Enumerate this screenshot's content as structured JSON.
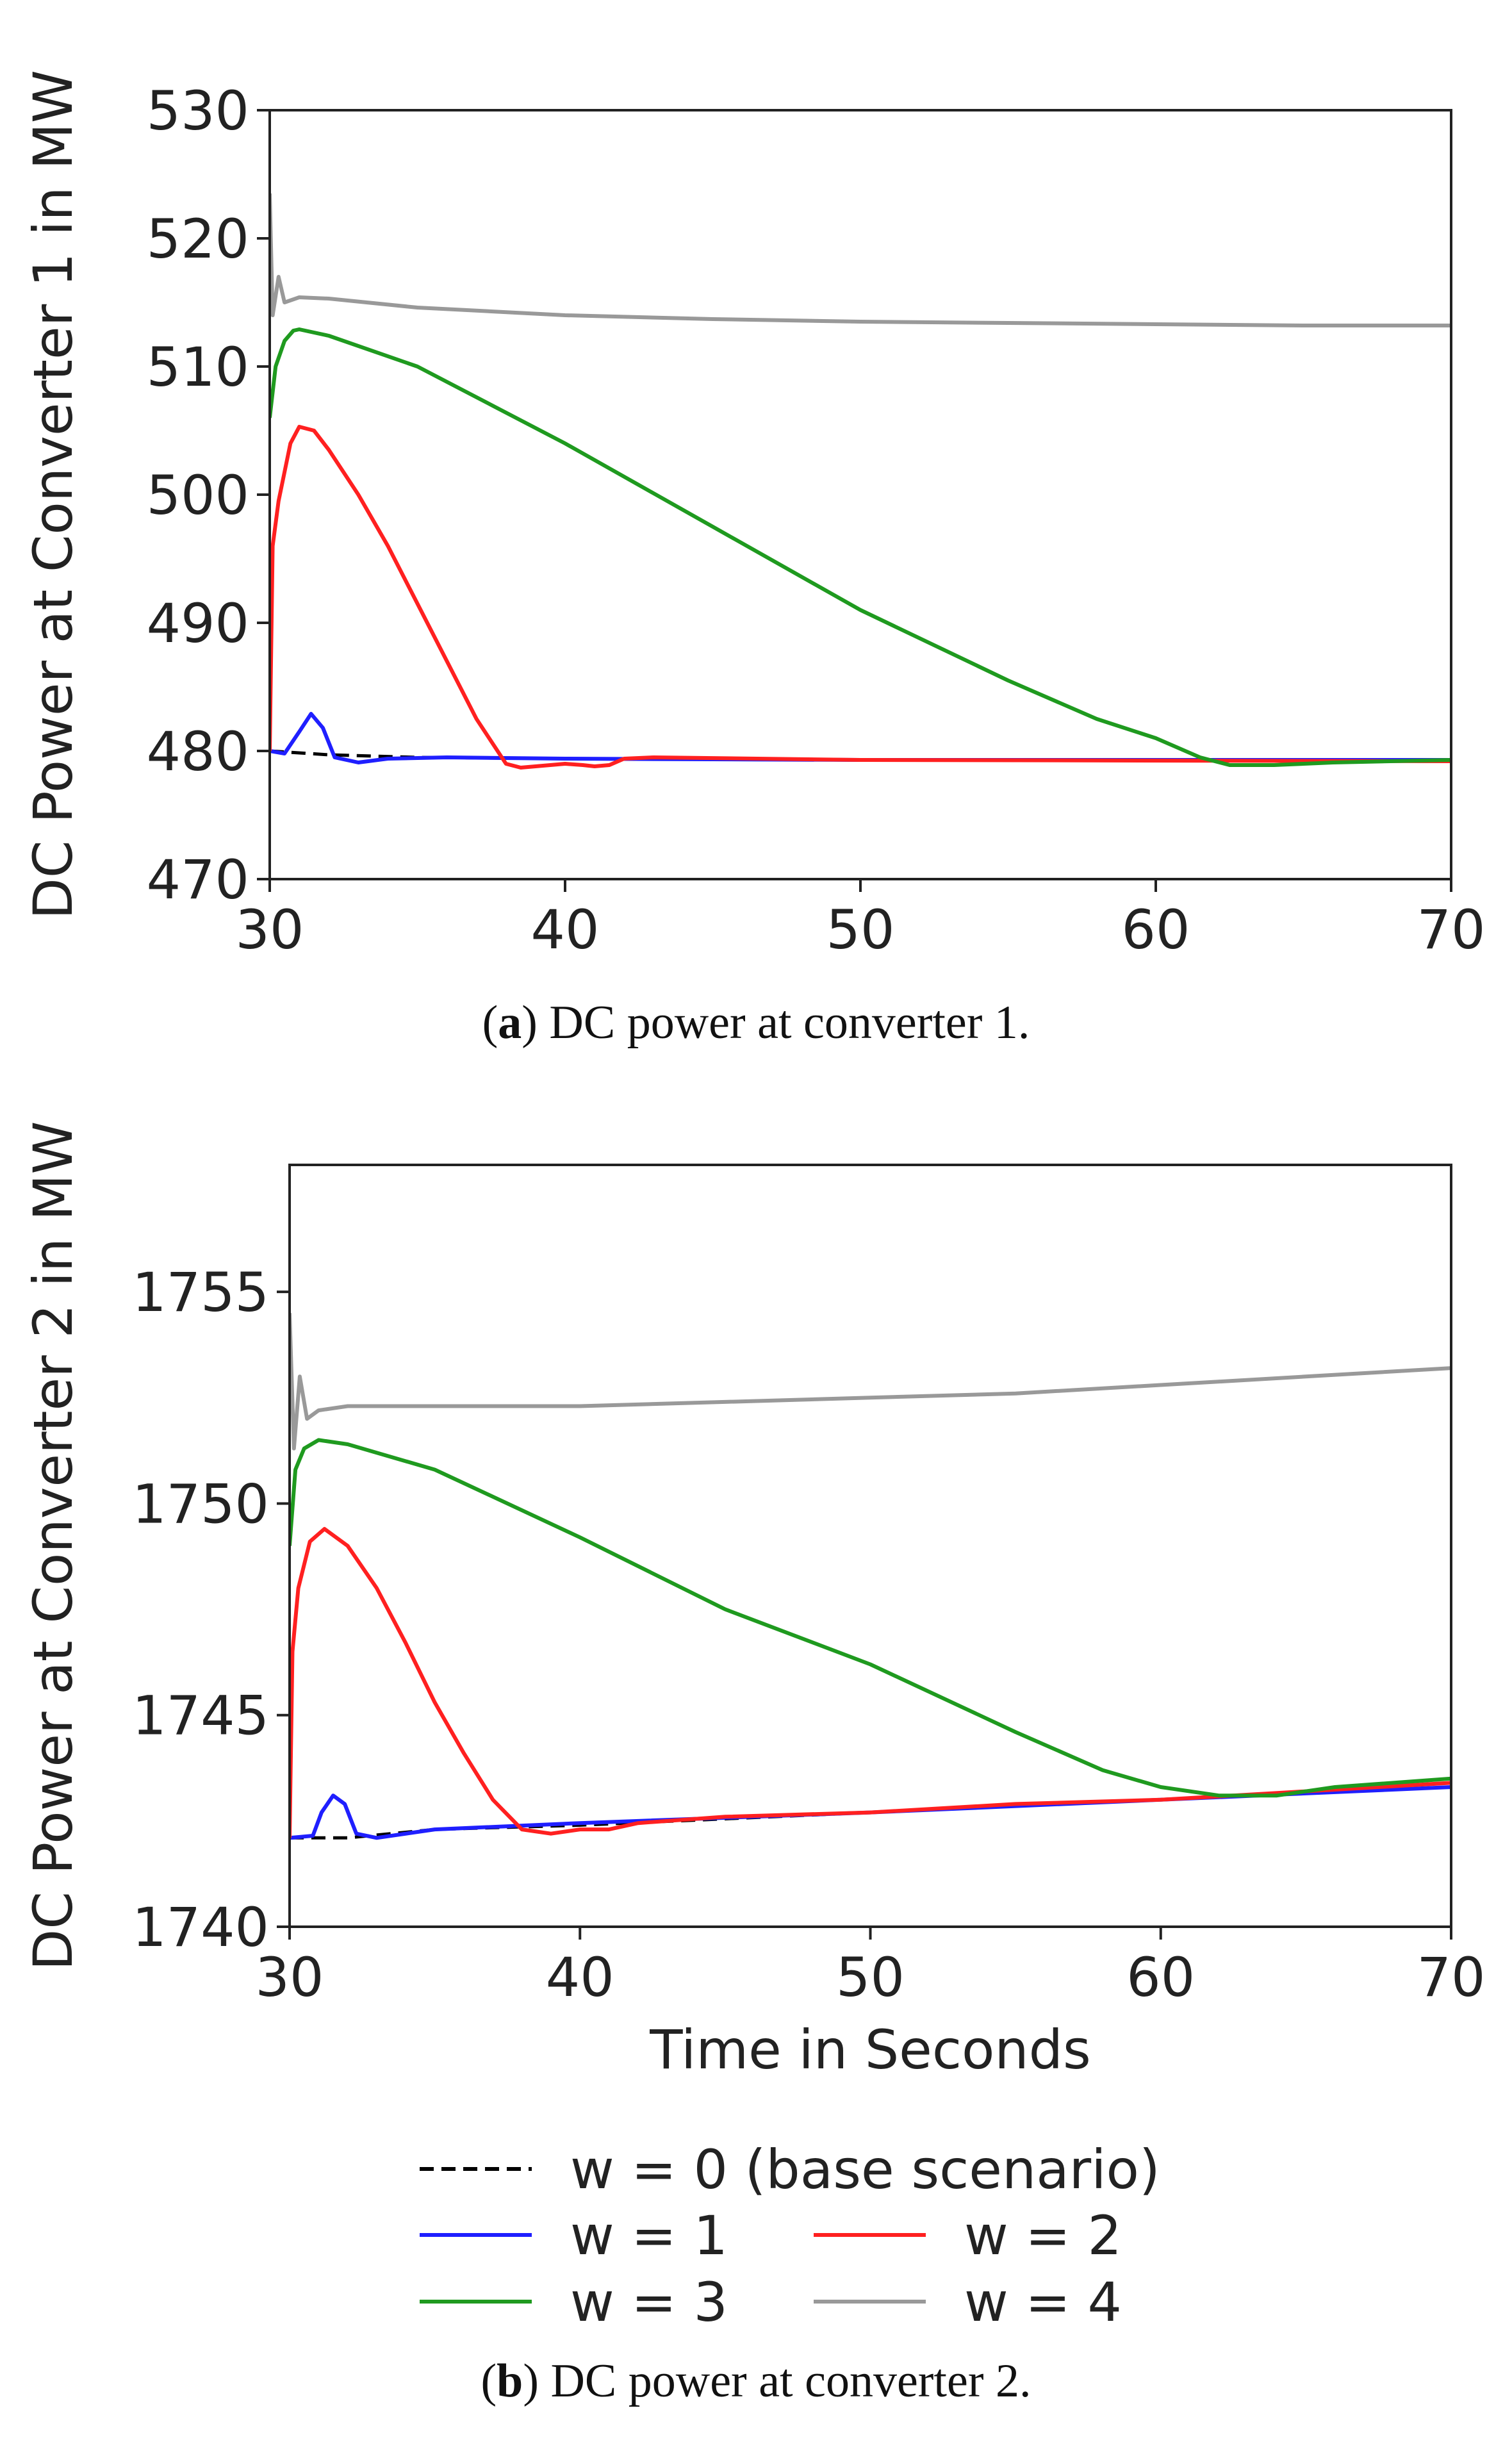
{
  "chart_data": [
    {
      "id": "a",
      "type": "line",
      "ylabel": "DC Power at Converter 1 in MW",
      "xlabel": "",
      "xlim": [
        30,
        70
      ],
      "ylim": [
        470,
        530
      ],
      "xticks": [
        30,
        40,
        50,
        60,
        70
      ],
      "yticks": [
        470,
        480,
        490,
        500,
        510,
        520,
        530
      ],
      "caption_label": "a",
      "caption_text": "DC power at converter 1.",
      "series": [
        {
          "name": "w = 0 (base scenario)",
          "color": "#000000",
          "dashed": true,
          "points": [
            [
              30,
              480
            ],
            [
              32,
              479.7
            ],
            [
              35,
              479.5
            ],
            [
              40,
              479.4
            ],
            [
              50,
              479.3
            ],
            [
              60,
              479.3
            ],
            [
              70,
              479.3
            ]
          ]
        },
        {
          "name": "w = 1",
          "color": "#1f1fff",
          "dashed": false,
          "points": [
            [
              30,
              480
            ],
            [
              30.5,
              479.8
            ],
            [
              31,
              481.5
            ],
            [
              31.4,
              482.9
            ],
            [
              31.8,
              481.8
            ],
            [
              32.2,
              479.5
            ],
            [
              33,
              479.1
            ],
            [
              34,
              479.4
            ],
            [
              36,
              479.5
            ],
            [
              40,
              479.4
            ],
            [
              50,
              479.3
            ],
            [
              70,
              479.3
            ]
          ]
        },
        {
          "name": "w = 2",
          "color": "#ff2020",
          "dashed": false,
          "points": [
            [
              30,
              480
            ],
            [
              30.1,
              496
            ],
            [
              30.3,
              499.5
            ],
            [
              30.7,
              504
            ],
            [
              31,
              505.3
            ],
            [
              31.5,
              505
            ],
            [
              32,
              503.5
            ],
            [
              33,
              500
            ],
            [
              34,
              496
            ],
            [
              35,
              491.5
            ],
            [
              36,
              487
            ],
            [
              37,
              482.5
            ],
            [
              38,
              479
            ],
            [
              38.5,
              478.7
            ],
            [
              39,
              478.8
            ],
            [
              40,
              479
            ],
            [
              40.6,
              478.9
            ],
            [
              41,
              478.8
            ],
            [
              41.5,
              478.9
            ],
            [
              42,
              479.4
            ],
            [
              43,
              479.5
            ],
            [
              50,
              479.3
            ],
            [
              70,
              479.2
            ]
          ]
        },
        {
          "name": "w = 3",
          "color": "#1f9a1f",
          "dashed": false,
          "points": [
            [
              30,
              506
            ],
            [
              30.2,
              510
            ],
            [
              30.5,
              512
            ],
            [
              30.8,
              512.8
            ],
            [
              31,
              512.9
            ],
            [
              32,
              512.4
            ],
            [
              35,
              510
            ],
            [
              40,
              504
            ],
            [
              45,
              497.5
            ],
            [
              50,
              491
            ],
            [
              55,
              485.5
            ],
            [
              58,
              482.5
            ],
            [
              60,
              481
            ],
            [
              61.5,
              479.5
            ],
            [
              62.5,
              478.9
            ],
            [
              64,
              478.9
            ],
            [
              66,
              479.1
            ],
            [
              70,
              479.3
            ]
          ]
        },
        {
          "name": "w = 4",
          "color": "#999999",
          "dashed": false,
          "points": [
            [
              30,
              523.5
            ],
            [
              30.1,
              514
            ],
            [
              30.3,
              517
            ],
            [
              30.5,
              515
            ],
            [
              31,
              515.4
            ],
            [
              32,
              515.3
            ],
            [
              35,
              514.6
            ],
            [
              40,
              514
            ],
            [
              45,
              513.7
            ],
            [
              50,
              513.5
            ],
            [
              55,
              513.4
            ],
            [
              60,
              513.3
            ],
            [
              65,
              513.2
            ],
            [
              70,
              513.2
            ]
          ]
        }
      ]
    },
    {
      "id": "b",
      "type": "line",
      "ylabel": "DC Power at Converter 2 in MW",
      "xlabel": "Time in Seconds",
      "xlim": [
        30,
        70
      ],
      "ylim": [
        1740,
        1758
      ],
      "xticks": [
        30,
        40,
        50,
        60,
        70
      ],
      "yticks": [
        1740,
        1745,
        1750,
        1755
      ],
      "caption_label": "b",
      "caption_text": "DC power at converter 2.",
      "series": [
        {
          "name": "w = 0 (base scenario)",
          "color": "#000000",
          "dashed": true,
          "points": [
            [
              30,
              1742.1
            ],
            [
              32,
              1742.1
            ],
            [
              35,
              1742.3
            ],
            [
              40,
              1742.4
            ],
            [
              50,
              1742.7
            ],
            [
              60,
              1743
            ],
            [
              70,
              1743.3
            ]
          ]
        },
        {
          "name": "w = 1",
          "color": "#1f1fff",
          "dashed": false,
          "points": [
            [
              30,
              1742.1
            ],
            [
              30.8,
              1742.15
            ],
            [
              31.1,
              1742.7
            ],
            [
              31.5,
              1743.1
            ],
            [
              31.9,
              1742.9
            ],
            [
              32.3,
              1742.2
            ],
            [
              33,
              1742.1
            ],
            [
              35,
              1742.3
            ],
            [
              40,
              1742.45
            ],
            [
              50,
              1742.7
            ],
            [
              60,
              1743
            ],
            [
              70,
              1743.3
            ]
          ]
        },
        {
          "name": "w = 2",
          "color": "#ff2020",
          "dashed": false,
          "points": [
            [
              30,
              1742.1
            ],
            [
              30.1,
              1746.5
            ],
            [
              30.3,
              1748
            ],
            [
              30.7,
              1749.1
            ],
            [
              31.2,
              1749.4
            ],
            [
              32,
              1749
            ],
            [
              33,
              1748
            ],
            [
              34,
              1746.7
            ],
            [
              35,
              1745.3
            ],
            [
              36,
              1744.1
            ],
            [
              37,
              1743
            ],
            [
              38,
              1742.3
            ],
            [
              39,
              1742.2
            ],
            [
              40,
              1742.3
            ],
            [
              41,
              1742.3
            ],
            [
              42,
              1742.45
            ],
            [
              45,
              1742.6
            ],
            [
              50,
              1742.7
            ],
            [
              55,
              1742.9
            ],
            [
              60,
              1743
            ],
            [
              65,
              1743.2
            ],
            [
              70,
              1743.4
            ]
          ]
        },
        {
          "name": "w = 3",
          "color": "#1f9a1f",
          "dashed": false,
          "points": [
            [
              30,
              1749
            ],
            [
              30.2,
              1750.8
            ],
            [
              30.5,
              1751.3
            ],
            [
              31,
              1751.5
            ],
            [
              32,
              1751.4
            ],
            [
              35,
              1750.8
            ],
            [
              40,
              1749.2
            ],
            [
              45,
              1747.5
            ],
            [
              50,
              1746.2
            ],
            [
              55,
              1744.6
            ],
            [
              58,
              1743.7
            ],
            [
              60,
              1743.3
            ],
            [
              62,
              1743.1
            ],
            [
              64,
              1743.1
            ],
            [
              66,
              1743.3
            ],
            [
              70,
              1743.5
            ]
          ]
        },
        {
          "name": "w = 4",
          "color": "#999999",
          "dashed": false,
          "points": [
            [
              30,
              1754.5
            ],
            [
              30.15,
              1751.3
            ],
            [
              30.35,
              1753
            ],
            [
              30.6,
              1752
            ],
            [
              31,
              1752.2
            ],
            [
              32,
              1752.3
            ],
            [
              35,
              1752.3
            ],
            [
              40,
              1752.3
            ],
            [
              45,
              1752.4
            ],
            [
              50,
              1752.5
            ],
            [
              55,
              1752.6
            ],
            [
              60,
              1752.8
            ],
            [
              65,
              1753
            ],
            [
              70,
              1753.2
            ]
          ]
        }
      ]
    }
  ],
  "legend": {
    "entries": [
      {
        "name": "w = 0 (base scenario)",
        "color": "#000000",
        "dashed": true
      },
      {
        "name": "w = 1",
        "color": "#1f1fff",
        "dashed": false
      },
      {
        "name": "w = 2",
        "color": "#ff2020",
        "dashed": false
      },
      {
        "name": "w = 3",
        "color": "#1f9a1f",
        "dashed": false
      },
      {
        "name": "w = 4",
        "color": "#999999",
        "dashed": false
      }
    ]
  }
}
